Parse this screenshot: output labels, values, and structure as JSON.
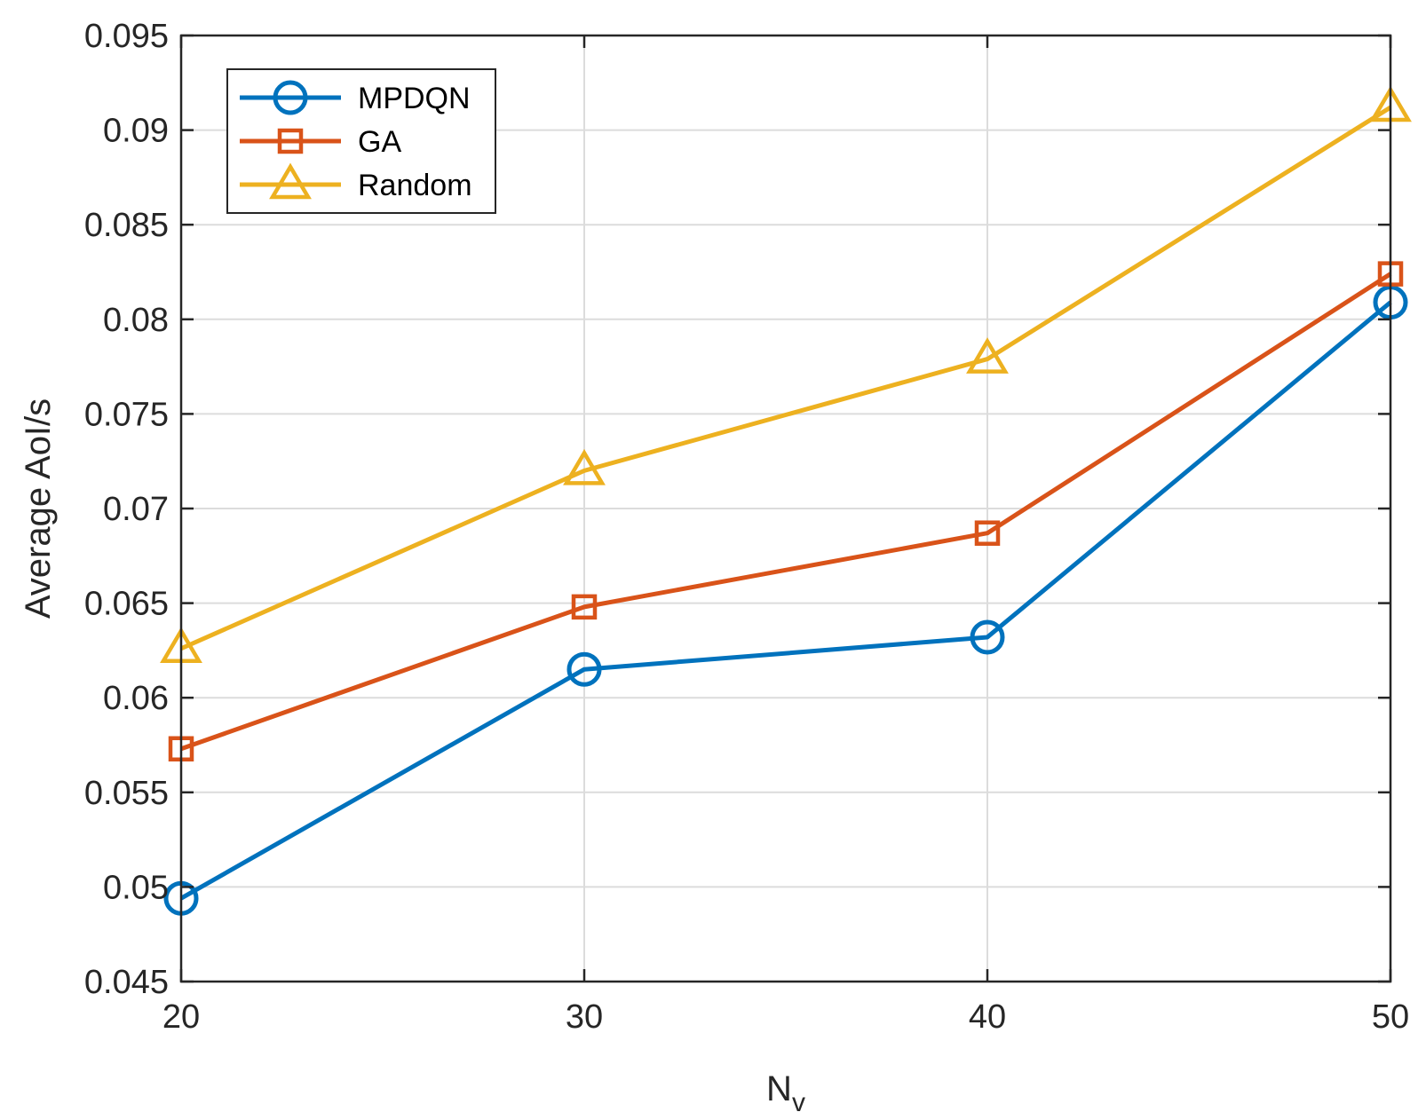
{
  "chart_data": {
    "type": "line",
    "title": "",
    "xlabel": "N",
    "xlabel_subscript": "v",
    "ylabel": "Average AoI/s",
    "x": [
      20,
      30,
      40,
      50
    ],
    "x_tick_labels": [
      "20",
      "30",
      "40",
      "50"
    ],
    "xlim": [
      20,
      50
    ],
    "ylim": [
      0.045,
      0.095
    ],
    "y_ticks": [
      0.045,
      0.05,
      0.055,
      0.06,
      0.065,
      0.07,
      0.075,
      0.08,
      0.085,
      0.09,
      0.095
    ],
    "y_tick_labels": [
      "0.045",
      "0.05",
      "0.055",
      "0.06",
      "0.065",
      "0.07",
      "0.075",
      "0.08",
      "0.085",
      "0.09",
      "0.095"
    ],
    "grid": true,
    "legend_position": "top-left",
    "series": [
      {
        "name": "MPDQN",
        "marker": "circle",
        "color": "#0072BD",
        "values": [
          0.0494,
          0.0615,
          0.0632,
          0.0809
        ]
      },
      {
        "name": "GA",
        "marker": "square",
        "color": "#D95319",
        "values": [
          0.0573,
          0.0648,
          0.0687,
          0.0824
        ]
      },
      {
        "name": "Random",
        "marker": "triangle",
        "color": "#EDB120",
        "values": [
          0.0626,
          0.072,
          0.0779,
          0.0912
        ]
      }
    ]
  }
}
